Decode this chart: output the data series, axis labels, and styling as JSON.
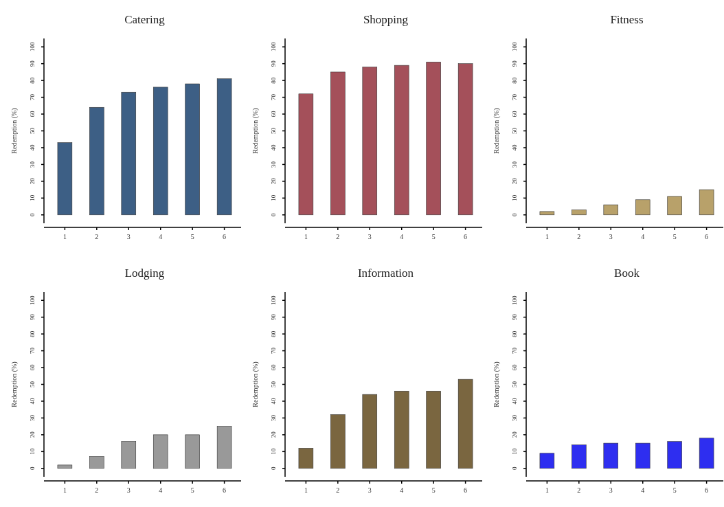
{
  "chart_data": [
    {
      "type": "bar",
      "title": "Catering",
      "ylabel": "Redemption (%)",
      "categories": [
        "1",
        "2",
        "3",
        "4",
        "5",
        "6"
      ],
      "values": [
        43,
        64,
        73,
        76,
        78,
        81
      ],
      "color": "#3d5f85",
      "ylim": [
        -5,
        105
      ],
      "yticks": [
        0,
        10,
        20,
        30,
        40,
        50,
        60,
        70,
        80,
        90,
        100
      ]
    },
    {
      "type": "bar",
      "title": "Shopping",
      "ylabel": "Redemption (%)",
      "categories": [
        "1",
        "2",
        "3",
        "4",
        "5",
        "6"
      ],
      "values": [
        72,
        85,
        88,
        89,
        91,
        90
      ],
      "color": "#a4505a",
      "ylim": [
        -5,
        105
      ],
      "yticks": [
        0,
        10,
        20,
        30,
        40,
        50,
        60,
        70,
        80,
        90,
        100
      ]
    },
    {
      "type": "bar",
      "title": "Fitness",
      "ylabel": "Redemption (%)",
      "categories": [
        "1",
        "2",
        "3",
        "4",
        "5",
        "6"
      ],
      "values": [
        2,
        3,
        6,
        9,
        11,
        15
      ],
      "color": "#b8a16a",
      "ylim": [
        -5,
        105
      ],
      "yticks": [
        0,
        10,
        20,
        30,
        40,
        50,
        60,
        70,
        80,
        90,
        100
      ]
    },
    {
      "type": "bar",
      "title": "Lodging",
      "ylabel": "Redemption (%)",
      "categories": [
        "1",
        "2",
        "3",
        "4",
        "5",
        "6"
      ],
      "values": [
        2,
        7,
        16,
        20,
        20,
        25
      ],
      "color": "#999999",
      "ylim": [
        -5,
        105
      ],
      "yticks": [
        0,
        10,
        20,
        30,
        40,
        50,
        60,
        70,
        80,
        90,
        100
      ]
    },
    {
      "type": "bar",
      "title": "Information",
      "ylabel": "Redemption (%)",
      "categories": [
        "1",
        "2",
        "3",
        "4",
        "5",
        "6"
      ],
      "values": [
        12,
        32,
        44,
        46,
        46,
        53
      ],
      "color": "#7a6640",
      "ylim": [
        -5,
        105
      ],
      "yticks": [
        0,
        10,
        20,
        30,
        40,
        50,
        60,
        70,
        80,
        90,
        100
      ]
    },
    {
      "type": "bar",
      "title": "Book",
      "ylabel": "Redemption (%)",
      "categories": [
        "1",
        "2",
        "3",
        "4",
        "5",
        "6"
      ],
      "values": [
        9,
        14,
        15,
        15,
        16,
        18
      ],
      "color": "#2e2ef0",
      "ylim": [
        -5,
        105
      ],
      "yticks": [
        0,
        10,
        20,
        30,
        40,
        50,
        60,
        70,
        80,
        90,
        100
      ]
    }
  ]
}
